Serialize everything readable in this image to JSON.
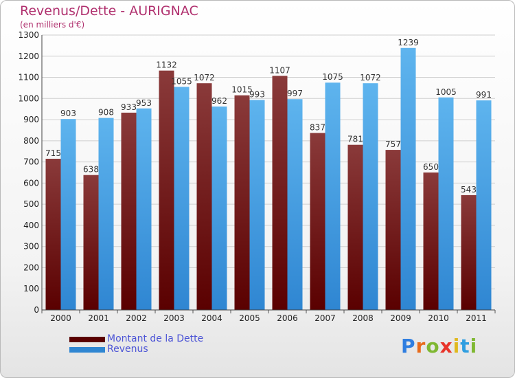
{
  "header": {
    "title": "Revenus/Dette - AURIGNAC",
    "subtitle": "(en milliers d'€)"
  },
  "legend": {
    "dette_label": "Montant de la Dette",
    "revenus_label": "Revenus"
  },
  "logo": {
    "text": "Proxiti",
    "letters": [
      "P",
      "r",
      "o",
      "x",
      "i",
      "t",
      "i"
    ],
    "colors": [
      "#2f7ee0",
      "#e86b1b",
      "#7fb832",
      "#e8342a",
      "#e0b81e",
      "#2f9ee0",
      "#7fb832"
    ]
  },
  "colors": {
    "dette_light": "#8a3a3a",
    "dette_dark": "#5a0000",
    "revenus_light": "#5eb4ee",
    "revenus_dark": "#2f86d2",
    "grid": "#cfcfcf",
    "title": "#b0306e",
    "legend_text": "#4d55d6"
  },
  "chart_data": {
    "type": "bar",
    "title": "Revenus/Dette - AURIGNAC",
    "subtitle": "(en milliers d'€)",
    "categories": [
      "2000",
      "2001",
      "2002",
      "2003",
      "2004",
      "2005",
      "2006",
      "2007",
      "2008",
      "2009",
      "2010",
      "2011"
    ],
    "series": [
      {
        "name": "Montant de la Dette",
        "values": [
          715,
          638,
          933,
          1132,
          1072,
          1015,
          1107,
          837,
          781,
          757,
          650,
          543
        ]
      },
      {
        "name": "Revenus",
        "values": [
          903,
          908,
          953,
          1055,
          962,
          993,
          997,
          1075,
          1072,
          1239,
          1005,
          991
        ]
      }
    ],
    "ylim": [
      0,
      1300
    ],
    "yticks": [
      0,
      100,
      200,
      300,
      400,
      500,
      600,
      700,
      800,
      900,
      1000,
      1100,
      1200,
      1300
    ],
    "grid": true,
    "legend_position": "bottom-left"
  }
}
